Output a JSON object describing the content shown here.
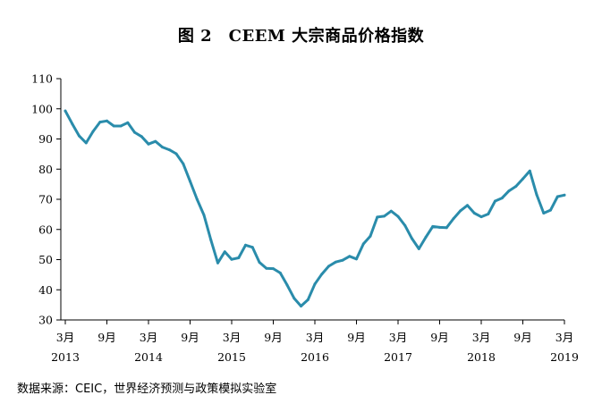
{
  "title": "图 2　CEEM 大宗商品价格指数",
  "source": "数据来源：CEIC，世界经济预测与政策模拟实验室",
  "colors": {
    "line": "#2a8cab",
    "axis": "#000000"
  },
  "chart_data": {
    "type": "line",
    "title": "图 2　CEEM 大宗商品价格指数",
    "xlabel": "",
    "ylabel": "",
    "ylim": [
      30,
      110
    ],
    "yticks": [
      30,
      40,
      50,
      60,
      70,
      80,
      90,
      100,
      110
    ],
    "grid": false,
    "legend": "none",
    "x_start": "2013-03",
    "x_end": "2019-03",
    "xticks": [
      {
        "month": "3月",
        "year": "2013",
        "index": 0
      },
      {
        "month": "9月",
        "year": "",
        "index": 6
      },
      {
        "month": "3月",
        "year": "2014",
        "index": 12
      },
      {
        "month": "9月",
        "year": "",
        "index": 18
      },
      {
        "month": "3月",
        "year": "2015",
        "index": 24
      },
      {
        "month": "9月",
        "year": "",
        "index": 30
      },
      {
        "month": "3月",
        "year": "2016",
        "index": 36
      },
      {
        "month": "9月",
        "year": "",
        "index": 42
      },
      {
        "month": "3月",
        "year": "2017",
        "index": 48
      },
      {
        "month": "9月",
        "year": "",
        "index": 54
      },
      {
        "month": "3月",
        "year": "2018",
        "index": 60
      },
      {
        "month": "9月",
        "year": "",
        "index": 66
      },
      {
        "month": "3月",
        "year": "2019",
        "index": 72
      }
    ],
    "series": [
      {
        "values": [
          99.3,
          95.0,
          91.0,
          88.7,
          92.5,
          95.6,
          96.0,
          94.3,
          94.3,
          95.4,
          92.2,
          90.8,
          88.3,
          89.2,
          87.3,
          86.4,
          85.1,
          81.8,
          76.0,
          70.0,
          64.8,
          56.5,
          48.9,
          52.6,
          50.1,
          50.6,
          54.8,
          54.1,
          49.1,
          47.1,
          47.0,
          45.6,
          41.6,
          37.2,
          34.6,
          36.7,
          41.9,
          45.2,
          47.8,
          49.2,
          49.8,
          51.1,
          50.2,
          55.2,
          57.8,
          64.1,
          64.4,
          66.1,
          64.3,
          61.3,
          57.0,
          53.6,
          57.4,
          61.0,
          60.7,
          60.6,
          63.6,
          66.2,
          68.0,
          65.4,
          64.2,
          65.1,
          69.4,
          70.4,
          72.8,
          74.3,
          76.8,
          79.4,
          71.5,
          65.4,
          66.4,
          70.9,
          71.4
        ]
      }
    ]
  }
}
